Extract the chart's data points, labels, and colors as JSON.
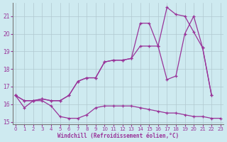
{
  "line1_x": [
    0,
    1,
    2,
    3,
    4,
    5,
    6,
    7,
    8,
    9,
    10,
    11,
    12,
    13,
    14,
    15,
    16,
    17,
    18,
    19,
    20,
    21,
    22,
    23
  ],
  "line1_y": [
    16.5,
    15.8,
    16.2,
    16.2,
    15.9,
    15.3,
    15.2,
    15.2,
    15.4,
    15.8,
    15.9,
    15.9,
    15.9,
    15.9,
    15.8,
    15.7,
    15.6,
    15.5,
    15.5,
    15.4,
    15.3,
    15.3,
    15.2,
    15.2
  ],
  "line2_x": [
    0,
    1,
    2,
    3,
    4,
    5,
    6,
    7,
    8,
    9,
    10,
    11,
    12,
    13,
    14,
    15,
    16,
    17,
    18,
    19,
    20,
    21,
    22
  ],
  "line2_y": [
    16.5,
    16.2,
    16.2,
    16.3,
    16.2,
    16.2,
    16.5,
    17.3,
    17.5,
    17.5,
    18.4,
    18.5,
    18.5,
    18.6,
    19.3,
    19.3,
    19.3,
    17.4,
    17.6,
    20.0,
    21.0,
    19.2,
    16.5
  ],
  "line3_x": [
    0,
    1,
    2,
    3,
    4,
    5,
    6,
    7,
    8,
    9,
    10,
    11,
    12,
    13,
    14,
    15,
    16,
    17,
    18,
    19,
    20,
    21,
    22
  ],
  "line3_y": [
    16.5,
    16.2,
    16.2,
    16.3,
    16.2,
    16.2,
    16.5,
    17.3,
    17.5,
    17.5,
    18.4,
    18.5,
    18.5,
    18.6,
    20.6,
    20.6,
    19.3,
    21.5,
    21.1,
    21.0,
    20.1,
    19.2,
    16.5
  ],
  "xlim": [
    -0.3,
    23.3
  ],
  "ylim": [
    14.85,
    21.75
  ],
  "yticks": [
    15,
    16,
    17,
    18,
    19,
    20,
    21
  ],
  "xticks": [
    0,
    1,
    2,
    3,
    4,
    5,
    6,
    7,
    8,
    9,
    10,
    11,
    12,
    13,
    14,
    15,
    16,
    17,
    18,
    19,
    20,
    21,
    22,
    23
  ],
  "line_color": "#993399",
  "bg_color": "#ceeaf0",
  "grid_color": "#b0c8d0",
  "xlabel": "Windchill (Refroidissement éolien,°C)",
  "marker": "+"
}
